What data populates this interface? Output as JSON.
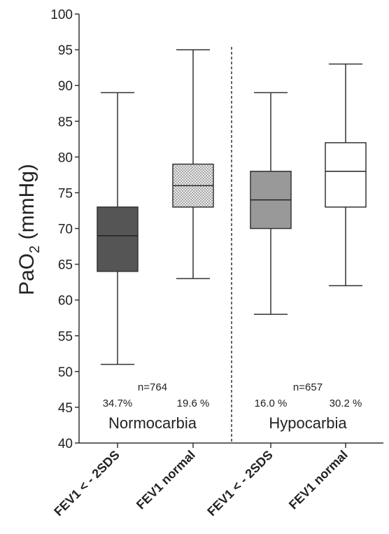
{
  "chart_data": {
    "type": "box",
    "ylabel": "PaO",
    "ylabel_sub": "2",
    "ylabel_unit": " (mmHg)",
    "ylim": [
      40,
      100
    ],
    "yticks": [
      40,
      45,
      50,
      55,
      60,
      65,
      70,
      75,
      80,
      85,
      90,
      95,
      100
    ],
    "categories": [
      "FEV1 < - 2SDS",
      "FEV1 normal",
      "FEV1 < - 2SDS",
      "FEV1 normal"
    ],
    "boxes": [
      {
        "min": 51,
        "q1": 64,
        "median": 69,
        "q3": 73,
        "max": 89,
        "fill": "#555555",
        "pattern": "solid"
      },
      {
        "min": 63,
        "q1": 73,
        "median": 76,
        "q3": 79,
        "max": 95,
        "fill": "#e8e8e8",
        "pattern": "dots"
      },
      {
        "min": 58,
        "q1": 70,
        "median": 74,
        "q3": 78,
        "max": 89,
        "fill": "#999999",
        "pattern": "solid"
      },
      {
        "min": 62,
        "q1": 73,
        "median": 78,
        "q3": 82,
        "max": 93,
        "fill": "#ffffff",
        "pattern": "solid"
      }
    ],
    "groups": [
      {
        "name": "Normocarbia",
        "n": "n=764",
        "percents": [
          "34.7%",
          "19.6 %"
        ]
      },
      {
        "name": "Hypocarbia",
        "n": "n=657",
        "percents": [
          "16.0 %",
          "30.2 %"
        ]
      }
    ],
    "separator": "dashed"
  }
}
